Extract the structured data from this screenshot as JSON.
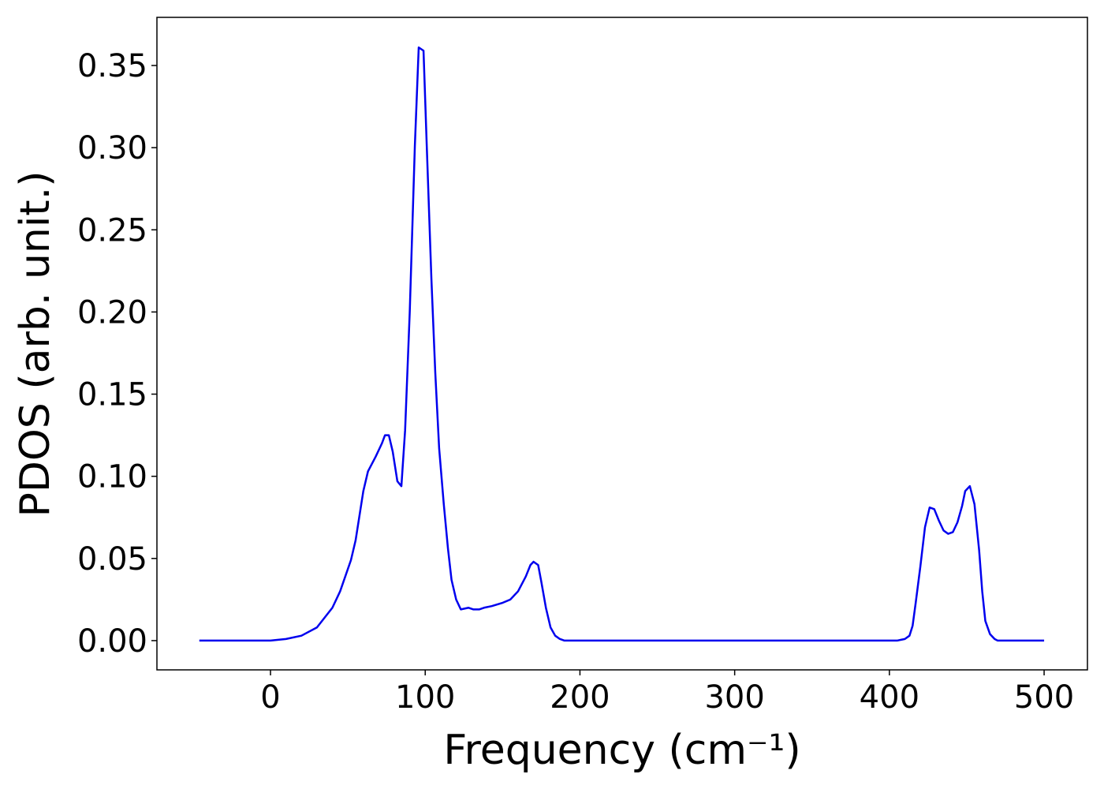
{
  "chart_data": {
    "type": "line",
    "xlabel": "Frequency (cm⁻¹)",
    "ylabel": "PDOS (arb. unit.)",
    "xlim": [
      -73.4,
      528
    ],
    "ylim": [
      -0.0178,
      0.3793
    ],
    "xticks": [
      0,
      100,
      200,
      300,
      400,
      500
    ],
    "yticks": [
      {
        "value": 0,
        "label": "0.00"
      },
      0.05,
      {
        "value": 0.1,
        "label": "0.10"
      },
      0.15,
      {
        "value": 0.2,
        "label": "0.20"
      },
      0.25,
      {
        "value": 0.3,
        "label": "0.30"
      },
      0.35
    ],
    "grid": false,
    "series": [
      {
        "name": "PDOS",
        "color": "#0000ee",
        "x": [
          -46,
          0,
          10,
          20,
          30,
          40,
          45,
          52,
          55,
          60,
          63,
          68,
          72,
          74,
          76.5,
          79,
          82,
          84.6,
          87,
          90,
          93.3,
          95.8,
          98.9,
          101,
          104,
          106.5,
          109,
          112,
          114.7,
          117,
          120,
          123,
          128,
          131,
          135,
          138,
          143,
          150,
          155,
          160,
          165,
          168,
          170,
          173,
          175,
          178,
          181,
          184,
          187,
          190,
          405,
          410,
          413,
          415,
          417,
          420,
          423,
          426,
          429,
          432,
          435,
          438,
          441,
          444,
          447,
          449,
          452,
          455,
          458,
          460,
          462,
          465,
          468,
          470,
          500
        ],
        "values": [
          0,
          0,
          0.001,
          0.003,
          0.008,
          0.02,
          0.03,
          0.049,
          0.061,
          0.091,
          0.103,
          0.112,
          0.12,
          0.125,
          0.125,
          0.115,
          0.097,
          0.094,
          0.128,
          0.2,
          0.301,
          0.361,
          0.359,
          0.301,
          0.22,
          0.163,
          0.117,
          0.083,
          0.056,
          0.037,
          0.025,
          0.019,
          0.02,
          0.019,
          0.019,
          0.02,
          0.021,
          0.023,
          0.025,
          0.03,
          0.039,
          0.046,
          0.048,
          0.046,
          0.036,
          0.02,
          0.008,
          0.003,
          0.001,
          0,
          0,
          0.001,
          0.003,
          0.009,
          0.023,
          0.045,
          0.069,
          0.081,
          0.08,
          0.073,
          0.067,
          0.065,
          0.066,
          0.072,
          0.082,
          0.091,
          0.094,
          0.083,
          0.055,
          0.03,
          0.012,
          0.004,
          0.001,
          0,
          0
        ]
      }
    ]
  }
}
